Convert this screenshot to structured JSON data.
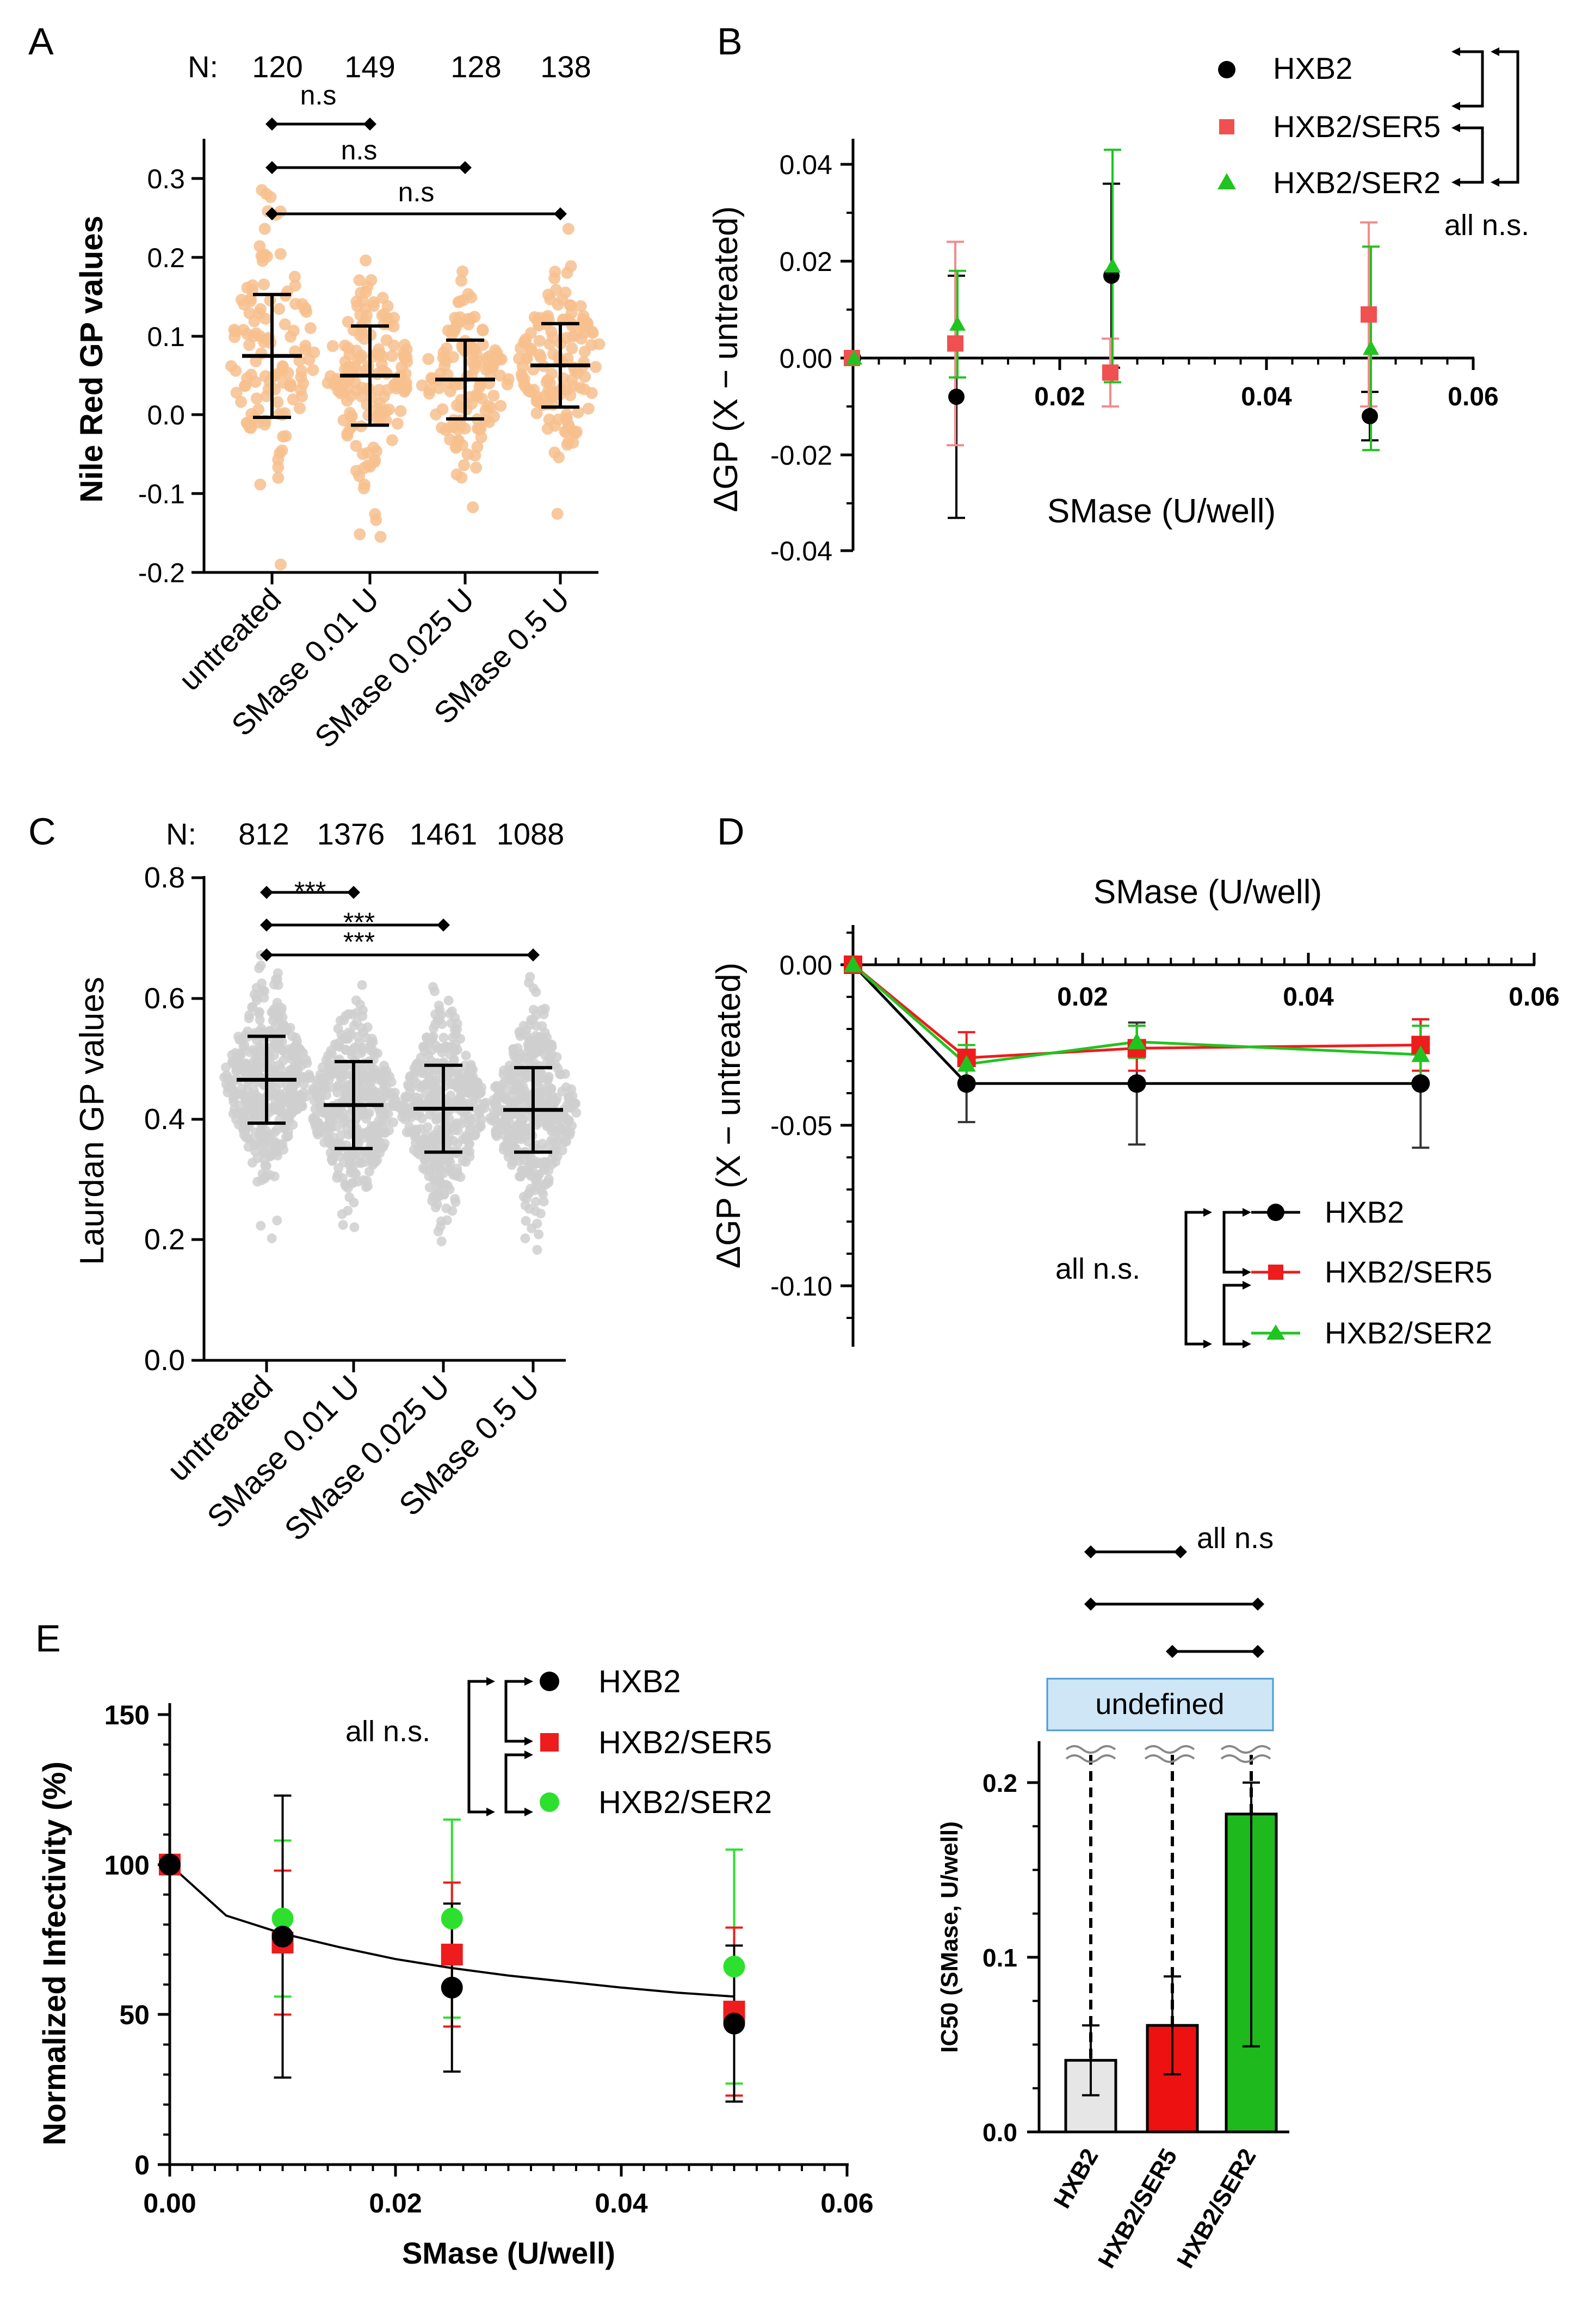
{
  "panels": {
    "A": {
      "letter": "A",
      "n_prefix": "N:",
      "counts": [
        "120",
        "149",
        "128",
        "138"
      ],
      "ylabel": "Nile Red GP values",
      "yticks": [
        "-0.2",
        "-0.1",
        "0.0",
        "0.1",
        "0.2",
        "0.3"
      ],
      "categories": [
        "untreated",
        "SMase 0.01 U",
        "SMase 0.025 U",
        "SMase 0.5 U"
      ],
      "comparisons": [
        "n.s",
        "n.s",
        "n.s"
      ]
    },
    "B": {
      "letter": "B",
      "xlabel": "SMase (U/well)",
      "ylabel": "ΔGP (X − untreated)",
      "xticks": [
        "0.02",
        "0.04",
        "0.06"
      ],
      "yticks": [
        "-0.04",
        "-0.02",
        "0.00",
        "0.02",
        "0.04"
      ],
      "legend": [
        "HXB2",
        "HXB2/SER5",
        "HXB2/SER2"
      ],
      "stat_note": "all n.s."
    },
    "C": {
      "letter": "C",
      "n_prefix": "N:",
      "counts": [
        "812",
        "1376",
        "1461",
        "1088"
      ],
      "ylabel": "Laurdan GP values",
      "yticks": [
        "0.0",
        "0.2",
        "0.4",
        "0.6",
        "0.8"
      ],
      "categories": [
        "untreated",
        "SMase 0.01 U",
        "SMase 0.025 U",
        "SMase 0.5 U"
      ],
      "comparisons": [
        "***",
        "***",
        "***"
      ]
    },
    "D": {
      "letter": "D",
      "xlabel": "SMase (U/well)",
      "ylabel": "ΔGP (X − untreated)",
      "xticks": [
        "0.02",
        "0.04",
        "0.06"
      ],
      "yticks": [
        "0.00",
        "-0.05",
        "-0.10"
      ],
      "legend": [
        "HXB2",
        "HXB2/SER5",
        "HXB2/SER2"
      ],
      "stat_note": "all n.s."
    },
    "E": {
      "letter": "E",
      "xlabel": "SMase (U/well)",
      "ylabel": "Normalized Infectivity (%)",
      "xticks": [
        "0.00",
        "0.02",
        "0.04",
        "0.06"
      ],
      "yticks": [
        "0",
        "50",
        "100",
        "150"
      ],
      "legend": [
        "HXB2",
        "HXB2/SER5",
        "HXB2/SER2"
      ],
      "stat_note": "all n.s.",
      "bar_ylabel": "IC50 (SMase, U/well)",
      "bar_yticks": [
        "0.0",
        "0.1",
        "0.2"
      ],
      "bar_categories": [
        "HXB2",
        "HXB2/SER5",
        "HXB2/SER2"
      ],
      "bar_stat_note": "all n.s",
      "undefined_label": "undefined"
    }
  },
  "colors": {
    "HXB2": "#000000",
    "HXB2/SER5": "#ee1c1c",
    "HXB2/SER2": "#1fc41f",
    "nile_red_points": "#f7c08d",
    "laurdan_points": "#cfcfcf",
    "bar_HXB2": "#e6e6e6",
    "bar_HXB2/SER5": "#ee1111",
    "bar_HXB2/SER2": "#1db91d",
    "undefined_box": "#cfe6f6"
  },
  "chart_data": [
    {
      "panel": "A",
      "type": "scatter",
      "title": "",
      "ylabel": "Nile Red GP values",
      "categories": [
        "untreated",
        "SMase 0.01 U",
        "SMase 0.025 U",
        "SMase 0.5 U"
      ],
      "n": [
        120,
        149,
        128,
        138
      ],
      "mean": [
        0.075,
        0.05,
        0.045,
        0.063
      ],
      "sd": [
        0.078,
        0.063,
        0.05,
        0.053
      ],
      "ylim": [
        -0.2,
        0.35
      ],
      "significance": [
        {
          "groups": [
            "untreated",
            "SMase 0.01 U"
          ],
          "label": "n.s"
        },
        {
          "groups": [
            "untreated",
            "SMase 0.025 U"
          ],
          "label": "n.s"
        },
        {
          "groups": [
            "untreated",
            "SMase 0.5 U"
          ],
          "label": "n.s"
        }
      ]
    },
    {
      "panel": "B",
      "type": "scatter",
      "xlabel": "SMase (U/well)",
      "ylabel": "ΔGP (X − untreated)",
      "xlim": [
        0,
        0.06
      ],
      "ylim": [
        -0.04,
        0.045
      ],
      "x": [
        0,
        0.01,
        0.025,
        0.05
      ],
      "series": [
        {
          "name": "HXB2",
          "values": [
            0.0,
            -0.008,
            0.017,
            -0.012
          ],
          "err": [
            0,
            0.025,
            0.019,
            0.005
          ]
        },
        {
          "name": "HXB2/SER5",
          "values": [
            0.0,
            0.003,
            -0.003,
            0.009
          ],
          "err": [
            0,
            0.021,
            0.007,
            0.019
          ]
        },
        {
          "name": "HXB2/SER2",
          "values": [
            0.0,
            0.007,
            0.019,
            0.002
          ],
          "err": [
            0,
            0.011,
            0.024,
            0.021
          ]
        }
      ],
      "legend": "top-right",
      "significance": "all n.s."
    },
    {
      "panel": "C",
      "type": "scatter",
      "title": "",
      "ylabel": "Laurdan GP values",
      "categories": [
        "untreated",
        "SMase 0.01 U",
        "SMase 0.025 U",
        "SMase 0.5 U"
      ],
      "n": [
        812,
        1376,
        1461,
        1088
      ],
      "mean": [
        0.465,
        0.423,
        0.417,
        0.415
      ],
      "sd": [
        0.072,
        0.072,
        0.072,
        0.07
      ],
      "ylim": [
        0.0,
        0.8
      ],
      "significance": [
        {
          "groups": [
            "untreated",
            "SMase 0.01 U"
          ],
          "label": "***"
        },
        {
          "groups": [
            "untreated",
            "SMase 0.025 U"
          ],
          "label": "***"
        },
        {
          "groups": [
            "untreated",
            "SMase 0.5 U"
          ],
          "label": "***"
        }
      ]
    },
    {
      "panel": "D",
      "type": "line",
      "xlabel": "SMase (U/well)",
      "ylabel": "ΔGP (X − untreated)",
      "xlim": [
        0,
        0.06
      ],
      "ylim": [
        -0.12,
        0.02
      ],
      "x": [
        0,
        0.01,
        0.025,
        0.05
      ],
      "series": [
        {
          "name": "HXB2",
          "values": [
            0.0,
            -0.037,
            -0.037,
            -0.037
          ],
          "err": [
            0,
            0.012,
            0.019,
            0.02
          ]
        },
        {
          "name": "HXB2/SER5",
          "values": [
            0.0,
            -0.029,
            -0.026,
            -0.025
          ],
          "err": [
            0,
            0.008,
            0.007,
            0.008
          ]
        },
        {
          "name": "HXB2/SER2",
          "values": [
            0.0,
            -0.031,
            -0.024,
            -0.028
          ],
          "err": [
            0,
            0.006,
            0.005,
            0.009
          ]
        }
      ],
      "legend": "bottom-right",
      "significance": "all n.s."
    },
    {
      "panel": "E-left",
      "type": "scatter",
      "xlabel": "SMase (U/well)",
      "ylabel": "Normalized Infectivity (%)",
      "xlim": [
        0,
        0.06
      ],
      "ylim": [
        0,
        150
      ],
      "x": [
        0,
        0.01,
        0.025,
        0.05
      ],
      "series": [
        {
          "name": "HXB2",
          "values": [
            100,
            76,
            59,
            47
          ],
          "err": [
            0,
            47,
            28,
            26
          ]
        },
        {
          "name": "HXB2/SER5",
          "values": [
            100,
            74,
            70,
            51
          ],
          "err": [
            0,
            24,
            24,
            28
          ]
        },
        {
          "name": "HXB2/SER2",
          "values": [
            100,
            82,
            82,
            66
          ],
          "err": [
            0,
            26,
            33,
            39
          ]
        }
      ],
      "fit": {
        "x": [
          0,
          0.005,
          0.01,
          0.015,
          0.02,
          0.025,
          0.03,
          0.035,
          0.04,
          0.045,
          0.05
        ],
        "values": [
          100,
          83,
          77,
          72.5,
          68.5,
          65.5,
          63,
          61,
          59,
          57.3,
          56
        ]
      },
      "legend": "top-right",
      "significance": "all n.s."
    },
    {
      "panel": "E-right",
      "type": "bar",
      "ylabel": "IC50 (SMase, U/well)",
      "categories": [
        "HXB2",
        "HXB2/SER5",
        "HXB2/SER2"
      ],
      "values": [
        0.041,
        0.061,
        0.182
      ],
      "err": [
        0.02,
        0.028,
        0.133
      ],
      "ylim": [
        0,
        0.2
      ],
      "note": "undefined",
      "significance": "all n.s"
    }
  ]
}
